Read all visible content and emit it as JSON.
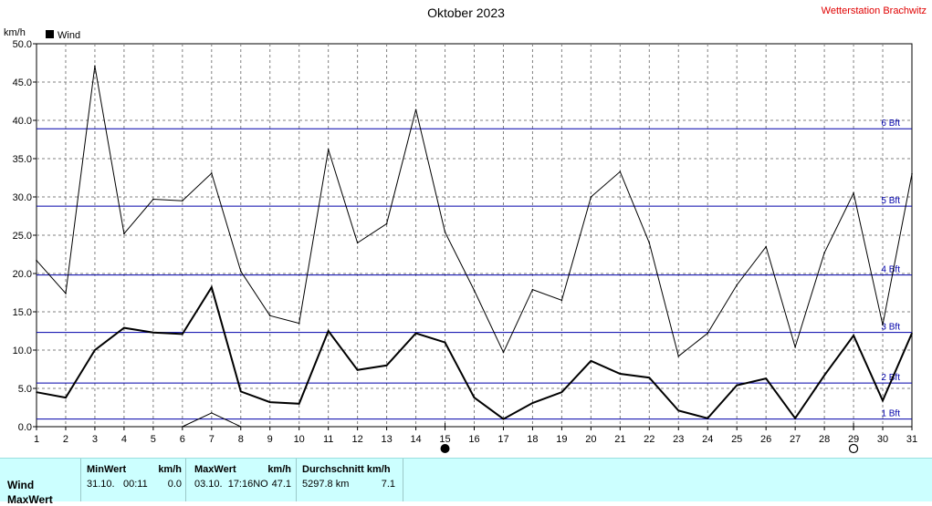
{
  "title": "Oktober 2023",
  "station": "Wetterstation Brachwitz",
  "chart_data": {
    "type": "line",
    "ylabel": "km/h",
    "ylim": [
      0,
      50
    ],
    "yticks": [
      "0.0",
      "5.0",
      "10.0",
      "15.0",
      "20.0",
      "25.0",
      "30.0",
      "35.0",
      "40.0",
      "45.0",
      "50.0"
    ],
    "x": [
      1,
      2,
      3,
      4,
      5,
      6,
      7,
      8,
      9,
      10,
      11,
      12,
      13,
      14,
      15,
      16,
      17,
      18,
      19,
      20,
      21,
      22,
      23,
      24,
      25,
      26,
      27,
      28,
      29,
      30,
      31
    ],
    "grid": true,
    "legend": "top-left",
    "series": [
      {
        "name": "Wind",
        "color": "#000000",
        "values": [
          4.5,
          3.8,
          10.0,
          12.9,
          12.3,
          12.1,
          18.2,
          4.6,
          3.2,
          3.0,
          12.5,
          7.4,
          8.0,
          12.2,
          11.0,
          3.8,
          1.0,
          3.1,
          4.5,
          8.6,
          6.9,
          6.4,
          2.1,
          1.1,
          5.4,
          6.3,
          1.1,
          6.7,
          11.9,
          3.4,
          12.2
        ]
      },
      {
        "color": "#000000",
        "values": [
          21.7,
          17.4,
          47.1,
          25.2,
          29.7,
          29.5,
          33.1,
          20.3,
          14.5,
          13.5,
          36.2,
          24.0,
          26.5,
          41.4,
          25.4,
          17.8,
          9.7,
          17.9,
          16.5,
          30.0,
          33.3,
          24.0,
          9.2,
          12.2,
          18.5,
          23.5,
          10.4,
          22.7,
          30.5,
          13.3,
          33.0
        ]
      },
      {
        "color": "#000000",
        "values": [
          null,
          null,
          null,
          null,
          null,
          0,
          1.8,
          0,
          null,
          null,
          null,
          null,
          null,
          null,
          0,
          0,
          null,
          null,
          null,
          null,
          null,
          null,
          null,
          null,
          null,
          null,
          null,
          null,
          null,
          null,
          null
        ]
      }
    ],
    "beaufort": [
      {
        "label": "1 Bft",
        "value": 1.0
      },
      {
        "label": "2 Bft",
        "value": 5.7
      },
      {
        "label": "3 Bft",
        "value": 12.3
      },
      {
        "label": "4 Bft",
        "value": 19.8
      },
      {
        "label": "5 Bft",
        "value": 28.8
      },
      {
        "label": "6 Bft",
        "value": 38.9
      }
    ],
    "beaufort_color": "#0000aa",
    "moon_phases": [
      {
        "day": 15,
        "phase": "new-moon"
      },
      {
        "day": 29,
        "phase": "full-moon"
      }
    ]
  },
  "stats": {
    "row_wind": "Wind",
    "row_max": "MaxWert",
    "min_header": "MinWert",
    "min_unit": "km/h",
    "min_date": "31.10.",
    "min_time": "00:11",
    "min_value": "0.0",
    "max_header": "MaxWert",
    "max_unit": "km/h",
    "max_datetime": "03.10.  17:16NO",
    "max_value": "47.1",
    "avg_header": "Durchschnitt km/h",
    "avg_distance": "5297.8 km",
    "avg_value": "7.1"
  }
}
